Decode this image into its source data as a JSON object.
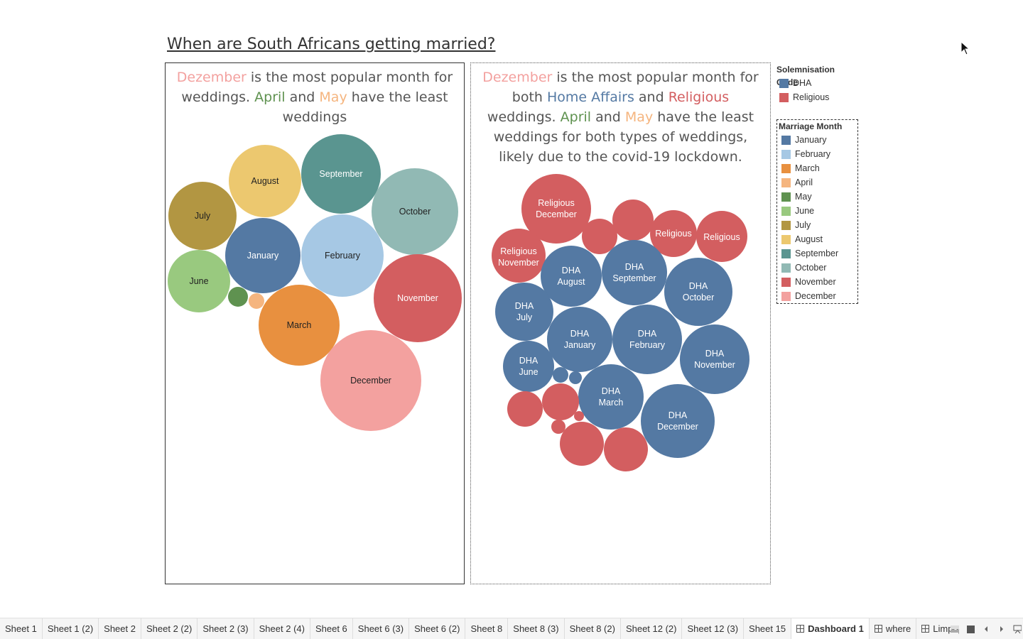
{
  "title": "When are South Africans getting married?",
  "colors": {
    "january": "#5479a3",
    "february": "#a6c8e4",
    "march": "#e8903f",
    "april": "#f5b57f",
    "may": "#5f9250",
    "june": "#99c97f",
    "july": "#b29642",
    "august": "#ecc86f",
    "september": "#5a9590",
    "october": "#91b9b4",
    "november": "#d35e60",
    "december": "#f3a19f",
    "dha": "#5479a3",
    "religious": "#d35e60"
  },
  "panel1": {
    "caption": {
      "w1": "Dezember",
      "t1": " is the most popular month for weddings. ",
      "w2": "April",
      "t2": " and ",
      "w3": "May",
      "t3": " have the least weddings"
    },
    "bubbles": [
      {
        "label": "September"
      },
      {
        "label": "August"
      },
      {
        "label": "October"
      },
      {
        "label": "July"
      },
      {
        "label": "January"
      },
      {
        "label": "February"
      },
      {
        "label": "June"
      },
      {
        "label": "November"
      },
      {
        "label": "March"
      },
      {
        "label": "December"
      },
      {
        "label": ""
      },
      {
        "label": ""
      }
    ]
  },
  "panel2": {
    "caption": {
      "w1": "Dezember",
      "t1": " is the most popular month for both ",
      "w2": "Home Affairs",
      "t2": " and ",
      "w3": "Religious",
      "t3": " weddings. ",
      "w4": "April",
      "t4": " and ",
      "w5": "May",
      "t5": " have the least weddings for both types of weddings, likely due to the covid-19 lockdown."
    },
    "bubbles": [
      {
        "line1": "Religious",
        "line2": "December"
      },
      {
        "line1": "",
        "line2": ""
      },
      {
        "line1": "",
        "line2": ""
      },
      {
        "line1": "Religious",
        "line2": ""
      },
      {
        "line1": "Religious",
        "line2": ""
      },
      {
        "line1": "Religious",
        "line2": "November"
      },
      {
        "line1": "DHA",
        "line2": "August"
      },
      {
        "line1": "DHA",
        "line2": "September"
      },
      {
        "line1": "DHA",
        "line2": "October"
      },
      {
        "line1": "DHA",
        "line2": "July"
      },
      {
        "line1": "DHA",
        "line2": "January"
      },
      {
        "line1": "DHA",
        "line2": "February"
      },
      {
        "line1": "DHA",
        "line2": "November"
      },
      {
        "line1": "DHA",
        "line2": "June"
      },
      {
        "line1": "DHA",
        "line2": "March"
      },
      {
        "line1": "DHA",
        "line2": "December"
      },
      {
        "line1": "",
        "line2": ""
      },
      {
        "line1": "",
        "line2": ""
      },
      {
        "line1": "",
        "line2": ""
      },
      {
        "line1": "",
        "line2": ""
      },
      {
        "line1": "",
        "line2": ""
      },
      {
        "line1": "",
        "line2": ""
      },
      {
        "line1": "",
        "line2": ""
      },
      {
        "line1": "",
        "line2": ""
      }
    ]
  },
  "legend_solemnisation": {
    "title": "Solemnisation Code",
    "items": [
      {
        "label": "DHA",
        "color": "#5479a3"
      },
      {
        "label": "Religious",
        "color": "#d35e60"
      }
    ]
  },
  "legend_month": {
    "title": "Marriage Month",
    "items": [
      {
        "label": "January",
        "color": "#5479a3"
      },
      {
        "label": "February",
        "color": "#a6c8e4"
      },
      {
        "label": "March",
        "color": "#e8903f"
      },
      {
        "label": "April",
        "color": "#f5b57f"
      },
      {
        "label": "May",
        "color": "#5f9250"
      },
      {
        "label": "June",
        "color": "#99c97f"
      },
      {
        "label": "July",
        "color": "#b29642"
      },
      {
        "label": "August",
        "color": "#ecc86f"
      },
      {
        "label": "September",
        "color": "#5a9590"
      },
      {
        "label": "October",
        "color": "#91b9b4"
      },
      {
        "label": "November",
        "color": "#d35e60"
      },
      {
        "label": "December",
        "color": "#f3a19f"
      }
    ]
  },
  "tabs": [
    {
      "label": "Sheet 1"
    },
    {
      "label": "Sheet 1 (2)"
    },
    {
      "label": "Sheet 2"
    },
    {
      "label": "Sheet 2 (2)"
    },
    {
      "label": "Sheet 2 (3)"
    },
    {
      "label": "Sheet 2 (4)"
    },
    {
      "label": "Sheet 6"
    },
    {
      "label": "Sheet 6 (3)"
    },
    {
      "label": "Sheet 6 (2)"
    },
    {
      "label": "Sheet 8"
    },
    {
      "label": "Sheet 8 (3)"
    },
    {
      "label": "Sheet 8 (2)"
    },
    {
      "label": "Sheet 12 (2)"
    },
    {
      "label": "Sheet 12 (3)"
    },
    {
      "label": "Sheet 15"
    },
    {
      "label": "Dashboard 1"
    },
    {
      "label": "where"
    },
    {
      "label": "Limpopo"
    }
  ]
}
